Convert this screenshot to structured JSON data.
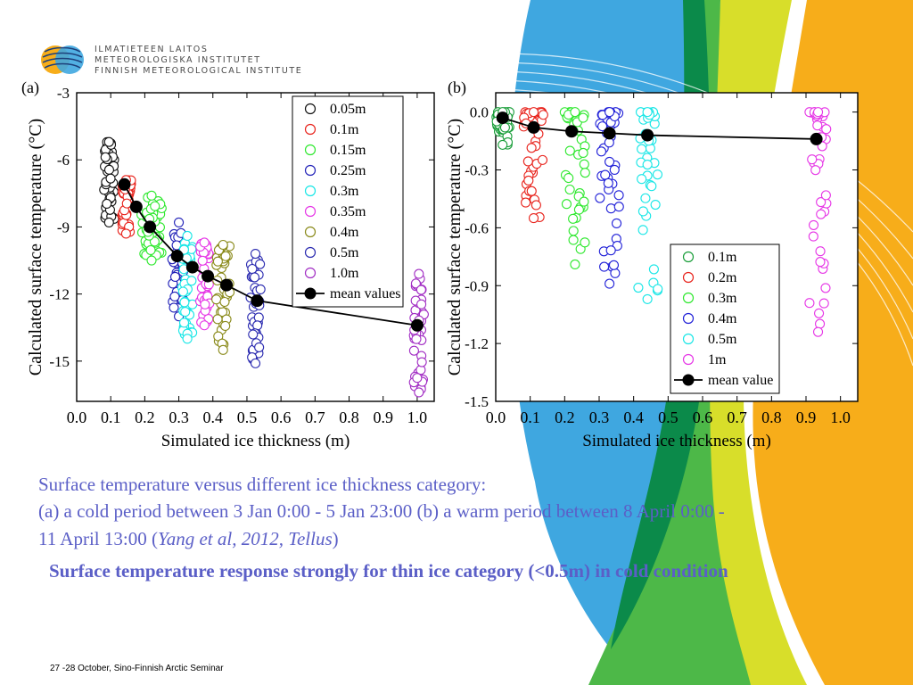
{
  "logo": {
    "lines": [
      "ILMATIETEEN LAITOS",
      "METEOROLOGISKA INSTITUTET",
      "FINNISH METEOROLOGICAL INSTITUTE"
    ]
  },
  "colors": {
    "caption": "#5b5fc7",
    "blue_band": "#3fa7e0",
    "green_band": "#4db848",
    "dark_green_band": "#0b8a4a",
    "yellow_band": "#d8de2a",
    "orange_band": "#f7ad1a"
  },
  "chart_data": [
    {
      "type": "scatter",
      "panel_label": "(a)",
      "xlabel": "Simulated ice thickness (m)",
      "ylabel": "Calculated surface temperature  (°C)",
      "xlim": [
        0.0,
        1.05
      ],
      "ylim": [
        -16.8,
        -3
      ],
      "xticks": [
        0.0,
        0.1,
        0.2,
        0.3,
        0.4,
        0.5,
        0.6,
        0.7,
        0.8,
        0.9,
        1.0
      ],
      "xtick_labels": [
        "0.0",
        "0.1",
        "0.2",
        "0.3",
        "0.4",
        "0.5",
        "0.6",
        "0.7",
        "0.8",
        "0.9",
        "1.0"
      ],
      "yticks": [
        -3,
        -6,
        -9,
        -12,
        -15
      ],
      "ytick_labels": [
        "-3",
        "-6",
        "-9",
        "-12",
        "-15"
      ],
      "legend_position": "top-right",
      "series": [
        {
          "name": "0.05m",
          "color": "#111111",
          "x_range": [
            0.08,
            0.11
          ],
          "y_range": [
            -8.8,
            -5.2
          ]
        },
        {
          "name": "0.1m",
          "color": "#e8231c",
          "x_range": [
            0.13,
            0.16
          ],
          "y_range": [
            -9.3,
            -6.9
          ]
        },
        {
          "name": "0.15m",
          "color": "#2ee82e",
          "x_range": [
            0.19,
            0.25
          ],
          "y_range": [
            -10.5,
            -7.6
          ]
        },
        {
          "name": "0.25m",
          "color": "#2222b8",
          "x_range": [
            0.28,
            0.32
          ],
          "y_range": [
            -13.0,
            -8.8
          ]
        },
        {
          "name": "0.3m",
          "color": "#17e6e6",
          "x_range": [
            0.31,
            0.34
          ],
          "y_range": [
            -14.0,
            -9.4
          ]
        },
        {
          "name": "0.35m",
          "color": "#e636e6",
          "x_range": [
            0.36,
            0.39
          ],
          "y_range": [
            -13.4,
            -9.7
          ]
        },
        {
          "name": "0.4m",
          "color": "#8a8a1a",
          "x_range": [
            0.41,
            0.45
          ],
          "y_range": [
            -14.5,
            -9.8
          ]
        },
        {
          "name": "0.5m",
          "color": "#2a2ab0",
          "x_range": [
            0.51,
            0.54
          ],
          "y_range": [
            -15.1,
            -10.2
          ]
        },
        {
          "name": "1.0m",
          "color": "#a22ec4",
          "x_range": [
            0.99,
            1.02
          ],
          "y_range": [
            -16.4,
            -11.1
          ]
        }
      ],
      "mean_series": {
        "name": "mean values",
        "x": [
          0.14,
          0.175,
          0.215,
          0.295,
          0.34,
          0.385,
          0.44,
          0.53,
          1.0
        ],
        "y": [
          -7.1,
          -8.1,
          -9.0,
          -10.3,
          -10.8,
          -11.2,
          -11.6,
          -12.3,
          -13.4
        ]
      }
    },
    {
      "type": "scatter",
      "panel_label": "(b)",
      "xlabel": "Simulated ice thickness (m)",
      "ylabel": "Calculated surface temperature  (°C)",
      "xlim": [
        0.0,
        1.05
      ],
      "ylim": [
        -1.5,
        0.1
      ],
      "xticks": [
        0.0,
        0.1,
        0.2,
        0.3,
        0.4,
        0.5,
        0.6,
        0.7,
        0.8,
        0.9,
        1.0
      ],
      "xtick_labels": [
        "0.0",
        "0.1",
        "0.2",
        "0.3",
        "0.4",
        "0.5",
        "0.6",
        "0.7",
        "0.8",
        "0.9",
        "1.0"
      ],
      "yticks": [
        0.0,
        -0.3,
        -0.6,
        -0.9,
        -1.2,
        -1.5
      ],
      "ytick_labels": [
        "0.0",
        "-0.3",
        "-0.6",
        "-0.9",
        "-1.2",
        "-1.5"
      ],
      "legend_position": "bottom-right",
      "series": [
        {
          "name": "0.1m",
          "color": "#1a9e3a",
          "x_range": [
            0.0,
            0.04
          ],
          "y_range": [
            -0.17,
            0.0
          ]
        },
        {
          "name": "0.2m",
          "color": "#e8231c",
          "x_range": [
            0.08,
            0.14
          ],
          "y_range": [
            -0.55,
            0.0
          ]
        },
        {
          "name": "0.3m",
          "color": "#2ee82e",
          "x_range": [
            0.2,
            0.26
          ],
          "y_range": [
            -0.79,
            0.0
          ]
        },
        {
          "name": "0.4m",
          "color": "#2222d8",
          "x_range": [
            0.3,
            0.36
          ],
          "y_range": [
            -0.89,
            0.0
          ]
        },
        {
          "name": "0.5m",
          "color": "#17e6e6",
          "x_range": [
            0.41,
            0.47
          ],
          "y_range": [
            -0.97,
            0.0
          ]
        },
        {
          "name": "1m",
          "color": "#e636e6",
          "x_range": [
            0.91,
            0.96
          ],
          "y_range": [
            -1.14,
            0.0
          ]
        }
      ],
      "mean_series": {
        "name": "mean value",
        "x": [
          0.02,
          0.11,
          0.22,
          0.33,
          0.44,
          0.93
        ],
        "y": [
          -0.03,
          -0.08,
          -0.1,
          -0.11,
          -0.12,
          -0.14
        ]
      }
    }
  ],
  "caption": {
    "line1": "Surface temperature versus different ice thickness category:",
    "line2": "(a) a cold period between 3 Jan 0:00 - 5 Jan 23:00 (b) a warm period between 8 April 0:00 -",
    "line3_prefix": "11 April 13:00 (",
    "line3_cite": "Yang et al, 2012, Tellus",
    "line3_suffix": ")",
    "conclusion": "Surface temperature response strongly for thin ice category (<0.5m) in cold condition"
  },
  "footer": "27 -28 October, Sino-Finnish Arctic Seminar"
}
